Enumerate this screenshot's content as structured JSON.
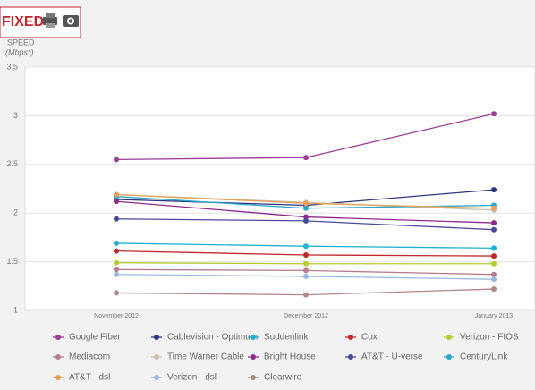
{
  "header": {
    "badge": "FIXED"
  },
  "chart_data": {
    "type": "line",
    "ylabel": "SPEED",
    "ylabel_unit": "(Mbps*)",
    "categories": [
      "November 2012",
      "December 2012",
      "January 2013"
    ],
    "ylim": [
      1,
      3.5
    ],
    "yticks": [
      1,
      1.5,
      2,
      2.5,
      3,
      3.5
    ],
    "grid": true,
    "legend": "bottom",
    "series": [
      {
        "name": "Google Fiber",
        "color": "#9b3d96",
        "values": [
          2.55,
          2.57,
          3.02
        ]
      },
      {
        "name": "Cablevision - Optimum",
        "color": "#2e3480",
        "values": [
          2.14,
          2.08,
          2.24
        ]
      },
      {
        "name": "Suddenlink",
        "color": "#1fb0d0",
        "values": [
          1.69,
          1.66,
          1.64
        ]
      },
      {
        "name": "Cox",
        "color": "#c0282d",
        "values": [
          1.61,
          1.57,
          1.56
        ]
      },
      {
        "name": "Verizon - FIOS",
        "color": "#b5cc2e",
        "values": [
          1.49,
          1.48,
          1.48
        ]
      },
      {
        "name": "Mediacom",
        "color": "#b57c8c",
        "values": [
          1.42,
          1.41,
          1.37
        ]
      },
      {
        "name": "Time Warner Cable",
        "color": "#c9c3b0",
        "values": [
          2.19,
          2.11,
          2.03
        ]
      },
      {
        "name": "Bright House",
        "color": "#8e2a8e",
        "values": [
          2.12,
          1.96,
          1.9
        ]
      },
      {
        "name": "AT&T - U-verse",
        "color": "#4a4a9a",
        "values": [
          1.94,
          1.92,
          1.83
        ]
      },
      {
        "name": "CenturyLink",
        "color": "#2aa8c8",
        "values": [
          2.17,
          2.05,
          2.08
        ]
      },
      {
        "name": "AT&T - dsl",
        "color": "#e8a05a",
        "values": [
          2.19,
          2.1,
          2.05
        ]
      },
      {
        "name": "Verizon - dsl",
        "color": "#9ab8e0",
        "values": [
          1.37,
          1.35,
          1.32
        ]
      },
      {
        "name": "Clearwire",
        "color": "#b08888",
        "values": [
          1.18,
          1.16,
          1.22
        ]
      }
    ]
  }
}
